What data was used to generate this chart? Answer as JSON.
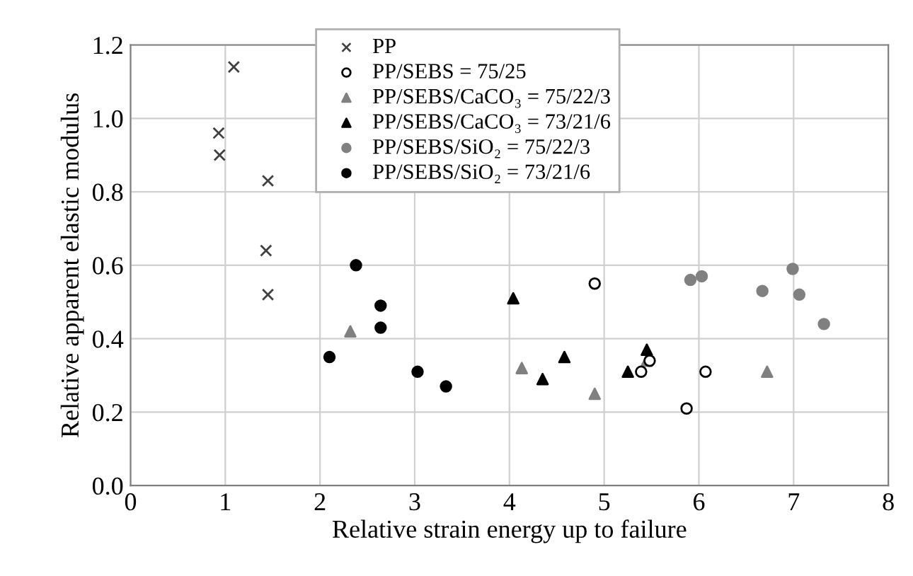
{
  "chart_data": {
    "type": "scatter",
    "xlabel": "Relative strain energy up to failure",
    "ylabel": "Relative apparent elastic modulus",
    "xlim": [
      0,
      8
    ],
    "ylim": [
      0,
      1.2
    ],
    "xticks": [
      0,
      1,
      2,
      3,
      4,
      5,
      6,
      7,
      8
    ],
    "yticks": [
      {
        "value": 0,
        "label": "0.0"
      },
      {
        "value": 0.2,
        "label": "0.2"
      },
      {
        "value": 0.4,
        "label": "0.4"
      },
      {
        "value": 0.6,
        "label": "0.6"
      },
      {
        "value": 0.8,
        "label": "0.8"
      },
      {
        "value": 1.0,
        "label": "1.0"
      },
      {
        "value": 1.2,
        "label": "1.2"
      }
    ],
    "grid": true,
    "legend": "top",
    "series": [
      {
        "name": "PP",
        "color": "#404040",
        "marker": "cross",
        "x": [
          1.09,
          0.93,
          0.94,
          1.45,
          1.43,
          1.45
        ],
        "values": [
          1.14,
          0.96,
          0.9,
          0.83,
          0.64,
          0.52
        ]
      },
      {
        "name": "PP/SEBS = 75/25",
        "color": "#ffffff",
        "marker": "circle",
        "x": [
          4.9,
          5.39,
          6.07,
          5.87,
          5.48
        ],
        "values": [
          0.55,
          0.31,
          0.31,
          0.21,
          0.34
        ]
      },
      {
        "name": "PP/SEBS/CaCO₃ = 75/22/3",
        "color": "#808080",
        "marker": "triangle",
        "x": [
          2.32,
          4.13,
          4.9,
          6.72,
          5.45
        ],
        "values": [
          0.42,
          0.32,
          0.25,
          0.31,
          0.34
        ]
      },
      {
        "name": "PP/SEBS/CaCO₃ = 73/21/6",
        "color": "#000000",
        "marker": "triangle",
        "x": [
          4.04,
          4.35,
          4.58,
          5.45,
          5.25
        ],
        "values": [
          0.51,
          0.29,
          0.35,
          0.37,
          0.31
        ]
      },
      {
        "name": "PP/SEBS/SiO₂ = 75/22/3",
        "color": "#808080",
        "marker": "circle",
        "x": [
          5.91,
          6.03,
          6.67,
          6.99,
          7.06,
          7.32
        ],
        "values": [
          0.56,
          0.57,
          0.53,
          0.59,
          0.52,
          0.44
        ]
      },
      {
        "name": "PP/SEBS/SiO₂ = 73/21/6",
        "color": "#000000",
        "marker": "circle",
        "x": [
          2.38,
          2.64,
          2.64,
          2.1,
          3.03,
          3.33
        ],
        "values": [
          0.6,
          0.49,
          0.43,
          0.35,
          0.31,
          0.27
        ]
      }
    ]
  }
}
